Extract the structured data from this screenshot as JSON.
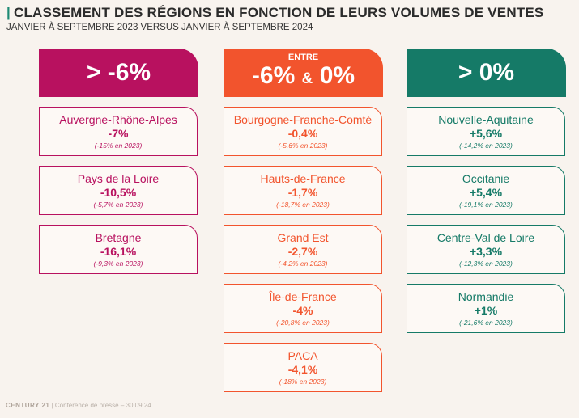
{
  "title": "CLASSEMENT DES RÉGIONS EN FONCTION DE LEURS VOLUMES DE VENTES",
  "subtitle": "JANVIER À SEPTEMBRE 2023 VERSUS JANVIER À SEPTEMBRE 2024",
  "columns": [
    {
      "header": "> -6%",
      "color": "#b8115f",
      "cards": [
        {
          "region": "Auvergne-Rhône-Alpes",
          "value": "-7%",
          "previous": "(-15% en 2023)"
        },
        {
          "region": "Pays de la Loire",
          "value": "-10,5%",
          "previous": "(-5,7% en 2023)"
        },
        {
          "region": "Bretagne",
          "value": "-16,1%",
          "previous": "(-9,3% en 2023)"
        }
      ]
    },
    {
      "header_small": "ENTRE",
      "header_a": "-6%",
      "header_amp": "&",
      "header_b": "0%",
      "color": "#f2542d",
      "cards": [
        {
          "region": "Bourgogne-Franche-Comté",
          "value": "-0,4%",
          "previous": "(-5,6% en 2023)"
        },
        {
          "region": "Hauts-de-France",
          "value": "-1,7%",
          "previous": "(-18,7% en 2023)"
        },
        {
          "region": "Grand Est",
          "value": "-2,7%",
          "previous": "(-4,2% en 2023)"
        },
        {
          "region": "Île-de-France",
          "value": "-4%",
          "previous": "(-20,8% en 2023)"
        },
        {
          "region": "PACA",
          "value": "-4,1%",
          "previous": "(-18% en 2023)"
        }
      ]
    },
    {
      "header": "> 0%",
      "color": "#157a67",
      "cards": [
        {
          "region": "Nouvelle-Aquitaine",
          "value": "+5,6%",
          "previous": "(-14,2% en 2023)"
        },
        {
          "region": "Occitanie",
          "value": "+5,4%",
          "previous": "(-19,1% en 2023)"
        },
        {
          "region": "Centre-Val de Loire",
          "value": "+3,3%",
          "previous": "(-12,3% en 2023)"
        },
        {
          "region": "Normandie",
          "value": "+1%",
          "previous": "(-21,6% en 2023)"
        }
      ]
    }
  ],
  "footer": {
    "brand": "CENTURY 21",
    "text": "| Conférence de presse – 30.09.24"
  }
}
